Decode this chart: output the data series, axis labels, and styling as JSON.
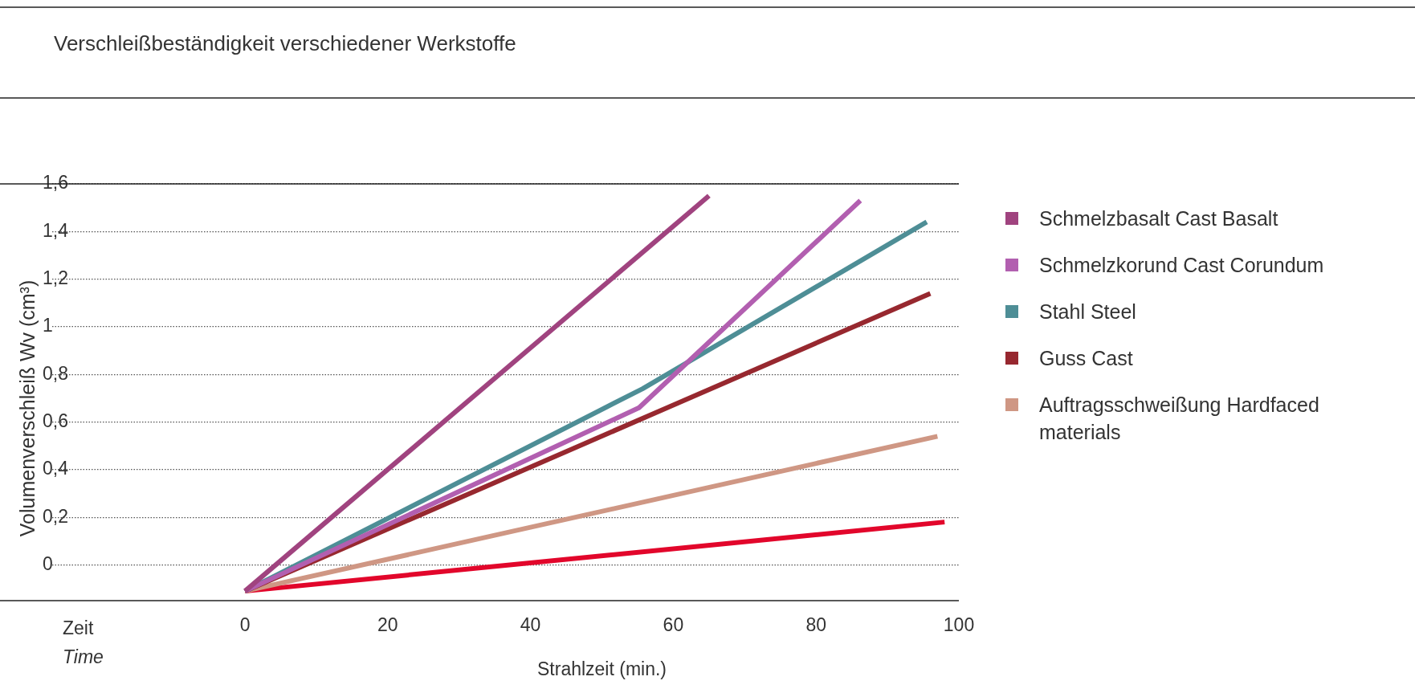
{
  "chart_data": {
    "type": "line",
    "title": "Verschleißbeständigkeit verschiedener Werkstoffe",
    "xlabel": "Strahlzeit (min.)",
    "ylabel": "Volumenverschleiß Wv (cm³)",
    "annotations": [
      "Zeit",
      "Time"
    ],
    "xlim": [
      -27,
      100
    ],
    "xticks": [
      0,
      20,
      40,
      60,
      80,
      100
    ],
    "ylim": [
      -0.15,
      1.6
    ],
    "yticks": [
      0,
      {
        "value": 0.2,
        "label": "0,2"
      },
      {
        "value": 0.4,
        "label": "0,4"
      },
      {
        "value": 0.6,
        "label": "0,6"
      },
      {
        "value": 0.8,
        "label": "0,8"
      },
      1,
      {
        "value": 1.2,
        "label": "1,2"
      },
      {
        "value": 1.4,
        "label": "1,4"
      },
      {
        "value": 1.6,
        "label": "1,6"
      }
    ],
    "grid": "y",
    "legend": "right",
    "marker": "none",
    "line_style": "solid",
    "series": [
      {
        "name": "Schmelzbasalt Cast Basalt",
        "color": "#a0437f",
        "x": [
          0,
          65
        ],
        "values": [
          -0.11,
          1.55
        ]
      },
      {
        "name": "Schmelzkorund Cast Corundum",
        "color": "#b25fb0",
        "x": [
          0,
          55.2,
          86.2
        ],
        "values": [
          -0.11,
          0.66,
          1.53
        ]
      },
      {
        "name": "Stahl Steel",
        "color": "#4e8e96",
        "x": [
          0,
          55.7,
          95.5
        ],
        "values": [
          -0.11,
          0.74,
          1.44
        ]
      },
      {
        "name": "Guss Cast",
        "color": "#97282f",
        "x": [
          0,
          96
        ],
        "values": [
          -0.11,
          1.14
        ]
      },
      {
        "name": "Auftragsschweißung Hardfaced materials",
        "color": "#cf9784",
        "x": [
          0,
          97
        ],
        "values": [
          -0.11,
          0.54
        ]
      },
      {
        "color": "#e2062b",
        "x": [
          0,
          98
        ],
        "values": [
          -0.11,
          0.18
        ]
      }
    ]
  }
}
